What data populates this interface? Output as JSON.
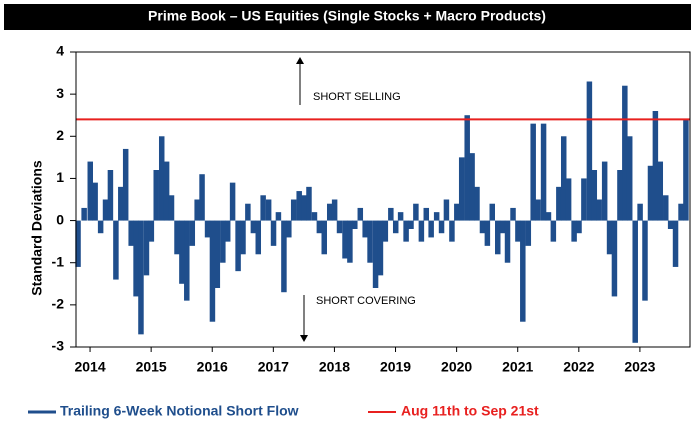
{
  "chart_data": {
    "type": "bar",
    "title": "Prime Book – US Equities (Single Stocks + Macro Products)",
    "y_label": "Standard Deviations",
    "annotations": [
      "SHORT SELLING",
      "SHORT COVERING"
    ],
    "xlim": [
      2013.77,
      2023.82
    ],
    "xticks": [
      2014,
      2015,
      2016,
      2017,
      2018,
      2019,
      2020,
      2021,
      2022,
      2023
    ],
    "ylim": [
      -3,
      4
    ],
    "yticks": [
      -3,
      -2,
      -1,
      0,
      1,
      2,
      3,
      4
    ],
    "x": [
      2013.8,
      2013.9,
      2014.0,
      2014.08,
      2014.17,
      2014.25,
      2014.33,
      2014.42,
      2014.5,
      2014.58,
      2014.67,
      2014.75,
      2014.83,
      2014.92,
      2015.0,
      2015.08,
      2015.17,
      2015.25,
      2015.33,
      2015.42,
      2015.5,
      2015.58,
      2015.67,
      2015.75,
      2015.83,
      2015.92,
      2016.0,
      2016.08,
      2016.17,
      2016.25,
      2016.33,
      2016.42,
      2016.5,
      2016.58,
      2016.67,
      2016.75,
      2016.83,
      2016.92,
      2017.0,
      2017.08,
      2017.17,
      2017.25,
      2017.33,
      2017.42,
      2017.5,
      2017.58,
      2017.67,
      2017.75,
      2017.83,
      2017.92,
      2018.0,
      2018.08,
      2018.17,
      2018.25,
      2018.33,
      2018.42,
      2018.5,
      2018.58,
      2018.67,
      2018.75,
      2018.83,
      2018.92,
      2019.0,
      2019.08,
      2019.17,
      2019.25,
      2019.33,
      2019.42,
      2019.5,
      2019.58,
      2019.67,
      2019.75,
      2019.83,
      2019.92,
      2020.0,
      2020.08,
      2020.17,
      2020.25,
      2020.33,
      2020.42,
      2020.5,
      2020.58,
      2020.67,
      2020.75,
      2020.83,
      2020.92,
      2021.0,
      2021.08,
      2021.17,
      2021.25,
      2021.33,
      2021.42,
      2021.5,
      2021.58,
      2021.67,
      2021.75,
      2021.83,
      2021.92,
      2022.0,
      2022.08,
      2022.17,
      2022.25,
      2022.33,
      2022.42,
      2022.5,
      2022.58,
      2022.67,
      2022.75,
      2022.83,
      2022.92,
      2023.0,
      2023.08,
      2023.17,
      2023.25,
      2023.33,
      2023.42,
      2023.5,
      2023.58,
      2023.67,
      2023.75
    ],
    "series": [
      {
        "name": "Trailing 6-Week Notional Short Flow",
        "color": "#1f4e8c",
        "values": [
          -1.1,
          0.3,
          1.4,
          0.9,
          -0.3,
          0.5,
          1.2,
          -1.4,
          0.8,
          1.7,
          -0.6,
          -1.8,
          -2.7,
          -1.3,
          -0.5,
          1.2,
          2.0,
          1.4,
          0.6,
          -0.8,
          -1.5,
          -1.9,
          -0.6,
          0.5,
          1.1,
          -0.4,
          -2.4,
          -1.6,
          -1.0,
          -0.5,
          0.9,
          -1.2,
          -0.8,
          0.4,
          -0.3,
          -0.8,
          0.6,
          0.5,
          -0.6,
          0.2,
          -1.7,
          -0.4,
          0.5,
          0.7,
          0.6,
          0.8,
          0.2,
          -0.3,
          -0.8,
          0.4,
          0.5,
          -0.3,
          -0.9,
          -1.0,
          -0.2,
          0.3,
          -0.4,
          -1.0,
          -1.6,
          -1.3,
          -0.5,
          0.3,
          -0.3,
          0.2,
          -0.5,
          -0.2,
          0.4,
          -0.5,
          0.3,
          -0.4,
          0.2,
          -0.3,
          0.5,
          -0.5,
          0.4,
          1.5,
          2.5,
          1.6,
          0.8,
          -0.3,
          -0.6,
          0.4,
          -0.8,
          -0.3,
          -1.0,
          0.3,
          -0.5,
          -2.4,
          -0.6,
          2.3,
          0.5,
          2.3,
          0.2,
          -0.5,
          0.8,
          2.0,
          1.0,
          -0.5,
          -0.3,
          1.0,
          3.3,
          1.2,
          0.5,
          1.4,
          -0.8,
          -1.8,
          1.2,
          3.2,
          2.0,
          -2.9,
          0.4,
          -1.9,
          1.3,
          2.6,
          1.4,
          0.6,
          -0.2,
          -1.1,
          0.4,
          2.4
        ]
      }
    ],
    "reference_line": {
      "name": "Aug 11th to Sep 21st",
      "color": "#e8201f",
      "value": 2.4
    }
  }
}
